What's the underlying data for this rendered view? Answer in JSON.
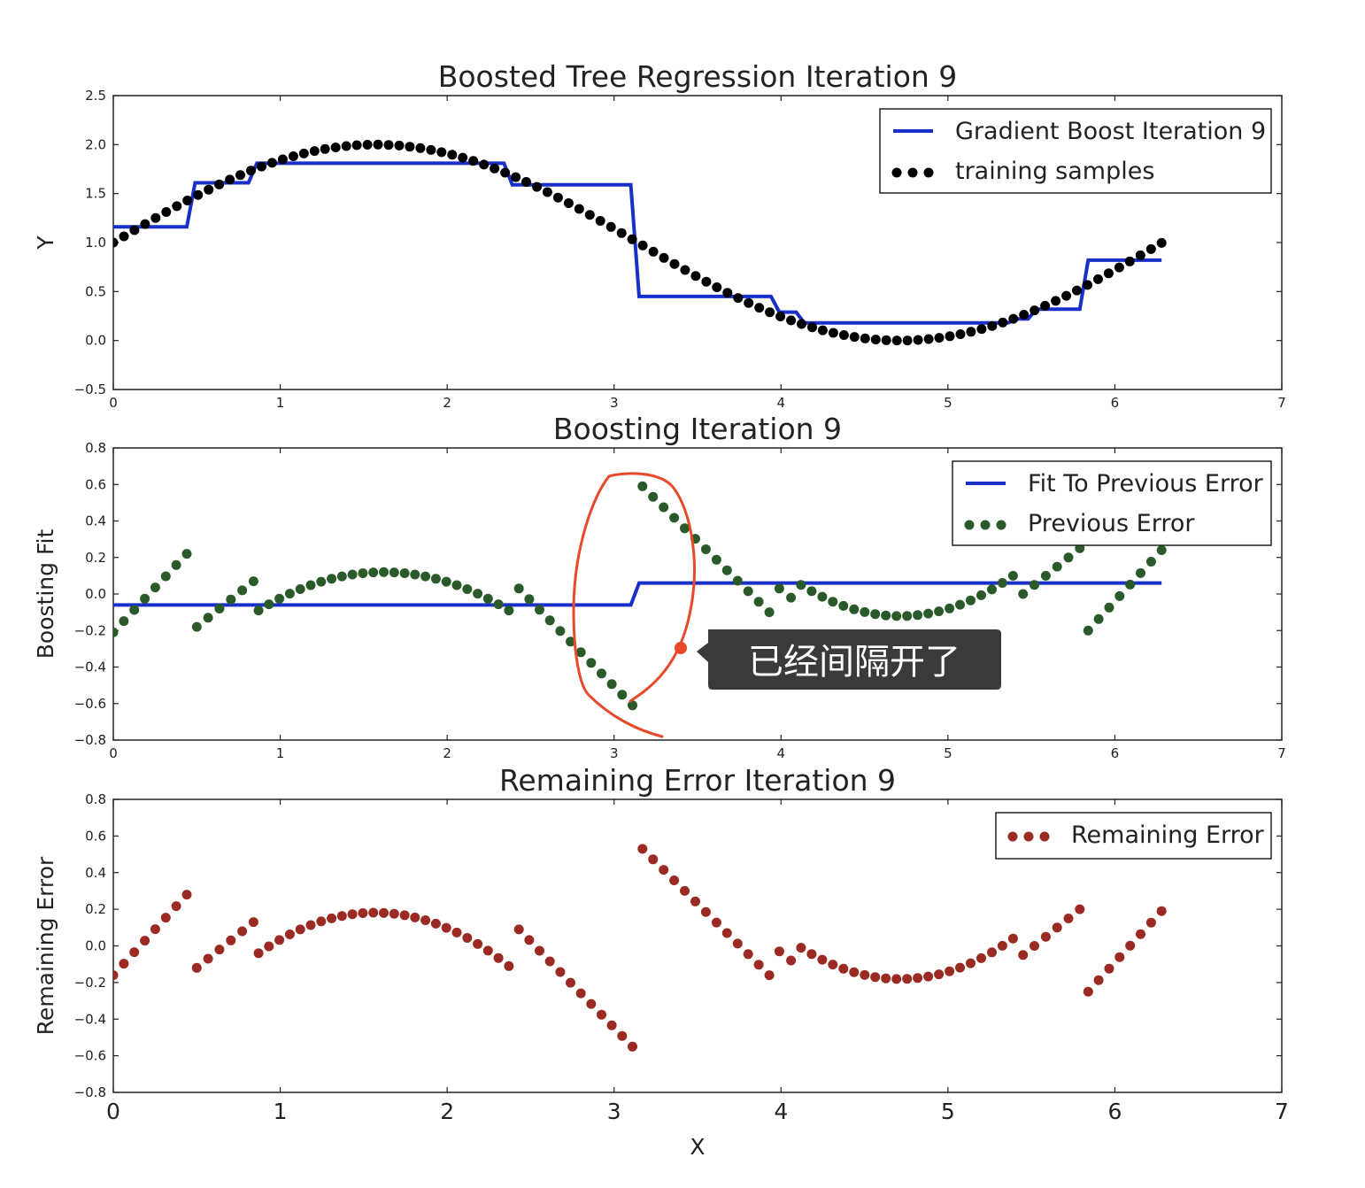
{
  "chart_data": [
    {
      "type": "line",
      "title": "Boosted Tree Regression Iteration 9",
      "xlabel": "",
      "ylabel": "Y",
      "xlim": [
        0,
        7
      ],
      "ylim": [
        -0.5,
        2.5
      ],
      "xticks": [
        "0",
        "1",
        "2",
        "3",
        "4",
        "5",
        "6",
        "7"
      ],
      "yticks": [
        "−0.5",
        "0.0",
        "0.5",
        "1.0",
        "1.5",
        "2.0",
        "2.5"
      ],
      "legend": "top-right",
      "series": [
        {
          "name": "Gradient Boost Iteration 9",
          "kind": "step-line",
          "color": "#1a2fc8",
          "x": [
            0.0,
            0.44,
            0.49,
            0.81,
            0.86,
            2.34,
            2.39,
            3.1,
            3.15,
            3.94,
            3.99,
            4.09,
            4.14,
            5.36,
            5.41,
            5.48,
            5.53,
            5.79,
            5.84,
            6.28
          ],
          "y": [
            1.16,
            1.16,
            1.61,
            1.61,
            1.81,
            1.81,
            1.59,
            1.59,
            0.45,
            0.45,
            0.29,
            0.29,
            0.18,
            0.18,
            0.22,
            0.22,
            0.32,
            0.32,
            0.82,
            0.82
          ]
        },
        {
          "name": "training samples",
          "kind": "scatter",
          "color": "#000000",
          "formula": "1 + sin(x)",
          "x_start": 0,
          "x_end": 6.28,
          "count": 100
        }
      ]
    },
    {
      "type": "line",
      "title": "Boosting Iteration 9",
      "xlabel": "",
      "ylabel": "Boosting Fit",
      "xlim": [
        0,
        7
      ],
      "ylim": [
        -0.8,
        0.8
      ],
      "xticks": [
        "0",
        "1",
        "2",
        "3",
        "4",
        "5",
        "6",
        "7"
      ],
      "yticks": [
        "−0.8",
        "−0.6",
        "−0.4",
        "−0.2",
        "0.0",
        "0.2",
        "0.4",
        "0.6",
        "0.8"
      ],
      "legend": "top-right",
      "series": [
        {
          "name": "Fit To Previous Error",
          "kind": "step-line",
          "color": "#1a2fc8",
          "x": [
            0.0,
            3.1,
            3.15,
            6.28
          ],
          "y": [
            -0.06,
            -0.06,
            0.06,
            0.06
          ]
        },
        {
          "name": "Previous Error",
          "kind": "scatter",
          "color": "#2a5a2a",
          "segments": [
            {
              "x": [
                0.0,
                0.44
              ],
              "y": [
                -0.21,
                0.22
              ]
            },
            {
              "x": [
                0.5,
                0.84
              ],
              "y": [
                -0.18,
                0.07
              ]
            },
            {
              "x": [
                0.87,
                2.37
              ],
              "y": [
                -0.09,
                -0.09
              ],
              "peak": 0.12
            },
            {
              "x": [
                2.43,
                3.11
              ],
              "y": [
                0.03,
                -0.61
              ]
            },
            {
              "x": [
                3.17,
                3.93
              ],
              "y": [
                0.59,
                -0.1
              ]
            },
            {
              "x": [
                3.99,
                4.06
              ],
              "y": [
                0.03,
                -0.02
              ]
            },
            {
              "x": [
                4.12,
                5.39
              ],
              "y": [
                0.05,
                0.1
              ],
              "peak": -0.12
            },
            {
              "x": [
                5.45,
                5.79
              ],
              "y": [
                0.0,
                0.25
              ]
            },
            {
              "x": [
                5.84,
                6.28
              ],
              "y": [
                -0.2,
                0.24
              ]
            }
          ]
        }
      ]
    },
    {
      "type": "scatter",
      "title": "Remaining Error Iteration 9",
      "xlabel": "X",
      "ylabel": "Remaining Error",
      "xlim": [
        0,
        7
      ],
      "ylim": [
        -0.8,
        0.8
      ],
      "xticks": [
        "0",
        "1",
        "2",
        "3",
        "4",
        "5",
        "6",
        "7"
      ],
      "yticks": [
        "−0.8",
        "−0.6",
        "−0.4",
        "−0.2",
        "0.0",
        "0.2",
        "0.4",
        "0.6",
        "0.8"
      ],
      "legend": "top-right",
      "series": [
        {
          "name": "Remaining Error",
          "kind": "scatter",
          "color": "#9b2a22",
          "segments": [
            {
              "x": [
                0.0,
                0.44
              ],
              "y": [
                -0.16,
                0.28
              ]
            },
            {
              "x": [
                0.5,
                0.84
              ],
              "y": [
                -0.12,
                0.13
              ]
            },
            {
              "x": [
                0.87,
                2.37
              ],
              "y": [
                -0.04,
                -0.11
              ],
              "peak": 0.18
            },
            {
              "x": [
                2.43,
                3.11
              ],
              "y": [
                0.09,
                -0.55
              ]
            },
            {
              "x": [
                3.17,
                3.93
              ],
              "y": [
                0.53,
                -0.16
              ]
            },
            {
              "x": [
                3.99,
                4.06
              ],
              "y": [
                -0.03,
                -0.08
              ]
            },
            {
              "x": [
                4.12,
                5.39
              ],
              "y": [
                -0.01,
                0.04
              ],
              "peak": -0.18
            },
            {
              "x": [
                5.45,
                5.79
              ],
              "y": [
                -0.05,
                0.2
              ]
            },
            {
              "x": [
                5.84,
                6.28
              ],
              "y": [
                -0.25,
                0.19
              ]
            }
          ]
        }
      ]
    }
  ],
  "annotation": {
    "text": "已经间隔开了",
    "loop_color": "#e8492a",
    "box_color": "#3a3a3a"
  }
}
